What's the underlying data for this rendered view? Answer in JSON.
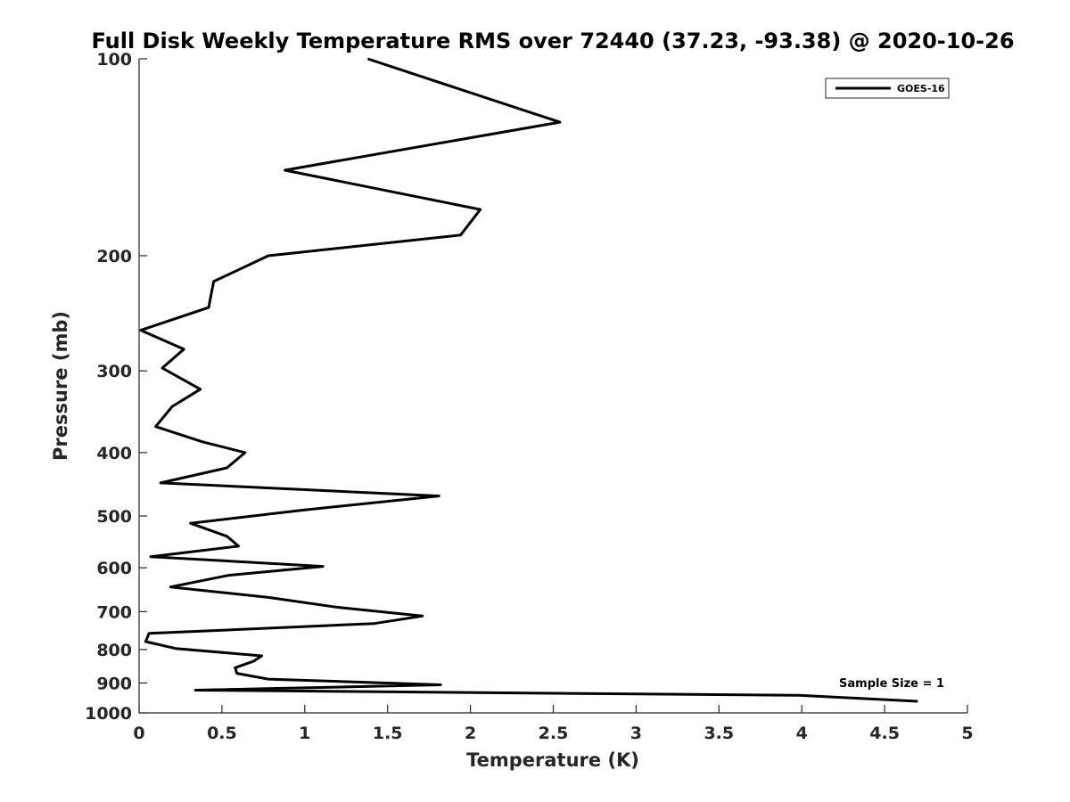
{
  "chart_data": {
    "type": "line",
    "title": "Full Disk Weekly Temperature RMS over 72440 (37.23, -93.38) @ 2020-10-26",
    "xlabel": "Temperature (K)",
    "ylabel": "Pressure (mb)",
    "xlim": [
      0,
      5
    ],
    "ylim": [
      100,
      1000
    ],
    "yscale": "log",
    "y_reversed": true,
    "x_ticks": [
      0,
      0.5,
      1,
      1.5,
      2,
      2.5,
      3,
      3.5,
      4,
      4.5,
      5
    ],
    "x_tick_labels": [
      "0",
      "0.5",
      "1",
      "1.5",
      "2",
      "2.5",
      "3",
      "3.5",
      "4",
      "4.5",
      "5"
    ],
    "y_ticks": [
      100,
      200,
      300,
      400,
      500,
      600,
      700,
      800,
      900,
      1000
    ],
    "y_tick_labels": [
      "100",
      "200",
      "300",
      "400",
      "500",
      "600",
      "700",
      "800",
      "900",
      "1000"
    ],
    "grid": false,
    "legend_position": "top-right",
    "series": [
      {
        "name": "GOES-16",
        "color": "#000000",
        "x": [
          1.38,
          2.54,
          0.88,
          2.06,
          1.94,
          0.78,
          0.45,
          0.42,
          0.01,
          0.27,
          0.14,
          0.37,
          0.2,
          0.1,
          0.38,
          0.64,
          0.53,
          0.13,
          1.81,
          0.98,
          0.31,
          0.53,
          0.6,
          0.07,
          1.11,
          0.54,
          0.19,
          0.78,
          1.19,
          1.71,
          1.42,
          0.06,
          0.04,
          0.22,
          0.74,
          0.69,
          0.58,
          0.59,
          0.78,
          1.82,
          0.34,
          3.98,
          4.7
        ],
        "y": [
          100,
          125,
          148,
          170,
          186,
          200,
          219,
          240,
          260,
          278,
          297,
          320,
          340,
          365,
          385,
          400,
          422,
          445,
          466,
          490,
          513,
          537,
          556,
          577,
          597,
          616,
          642,
          666,
          689,
          711,
          730,
          756,
          778,
          797,
          818,
          834,
          853,
          870,
          888,
          906,
          923,
          940,
          960
        ]
      }
    ],
    "annotations": [
      {
        "text": "Sample Size = 1"
      }
    ]
  }
}
